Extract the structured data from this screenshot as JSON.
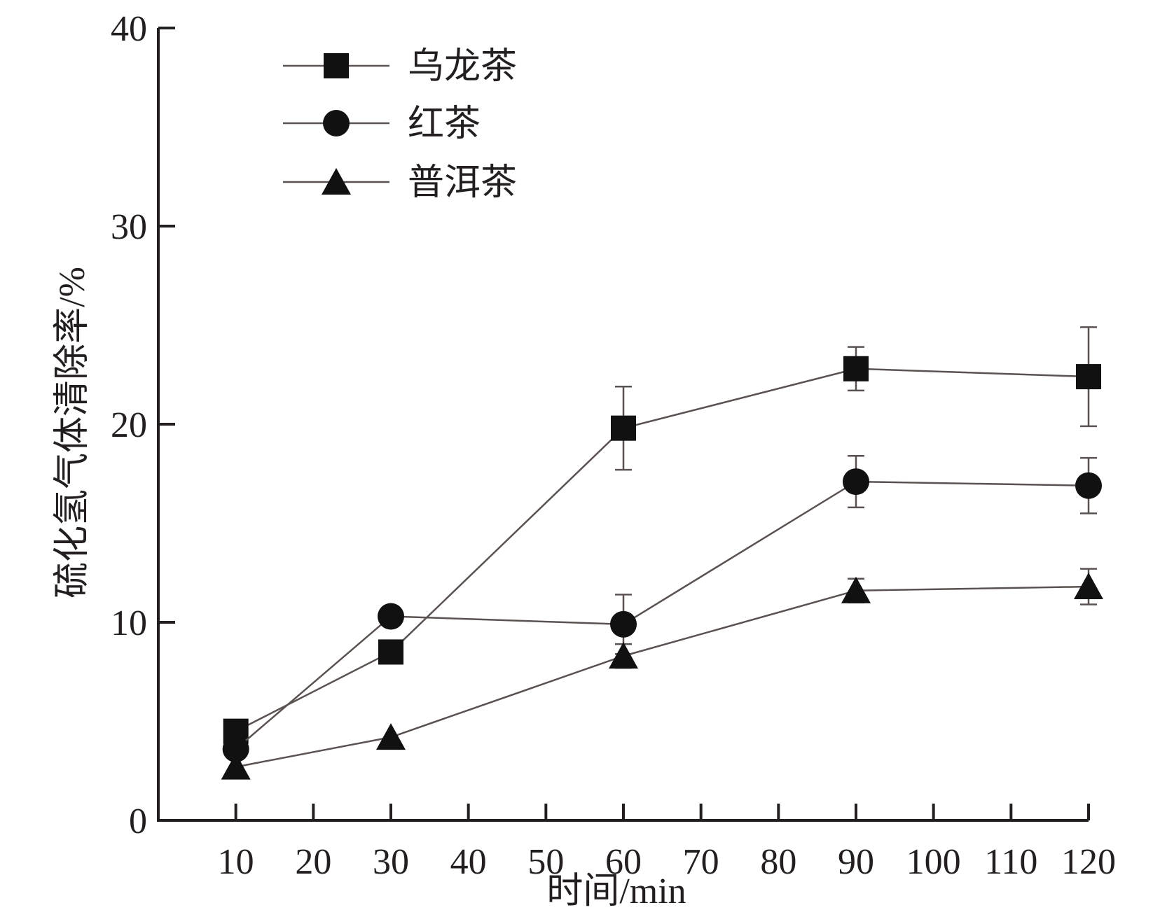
{
  "chart_data": {
    "type": "line",
    "title": "",
    "xlabel": "时间/min",
    "ylabel": "硫化氢气体清除率/%",
    "xlim": [
      0,
      120
    ],
    "ylim": [
      0,
      40
    ],
    "xticks": [
      10,
      20,
      30,
      40,
      50,
      60,
      70,
      80,
      90,
      100,
      110,
      120
    ],
    "xtick_labels": [
      "10",
      "20",
      "30",
      "40",
      "50",
      "60",
      "70",
      "80",
      "90",
      "100",
      "110",
      "120"
    ],
    "yticks": [
      0,
      10,
      20,
      30,
      40
    ],
    "ytick_labels": [
      "0",
      "10",
      "20",
      "30",
      "40"
    ],
    "x": [
      10,
      30,
      60,
      90,
      120
    ],
    "legend_position": "top-left",
    "grid": false,
    "series": [
      {
        "name": "乌龙茶",
        "marker": "square",
        "values": [
          4.5,
          8.5,
          19.8,
          22.8,
          22.4
        ],
        "errors": [
          null,
          null,
          2.1,
          1.1,
          2.5
        ]
      },
      {
        "name": "红茶",
        "marker": "circle",
        "values": [
          3.6,
          10.3,
          9.9,
          17.1,
          16.9
        ],
        "errors": [
          null,
          null,
          1.5,
          1.3,
          1.4
        ]
      },
      {
        "name": "普洱茶",
        "marker": "triangle",
        "values": [
          2.7,
          4.2,
          8.3,
          11.6,
          11.8
        ],
        "errors": [
          null,
          null,
          0.6,
          0.6,
          0.9
        ]
      }
    ],
    "colors": {
      "axis": "#231f20",
      "line": "#5a5250",
      "marker": "#111111"
    }
  }
}
